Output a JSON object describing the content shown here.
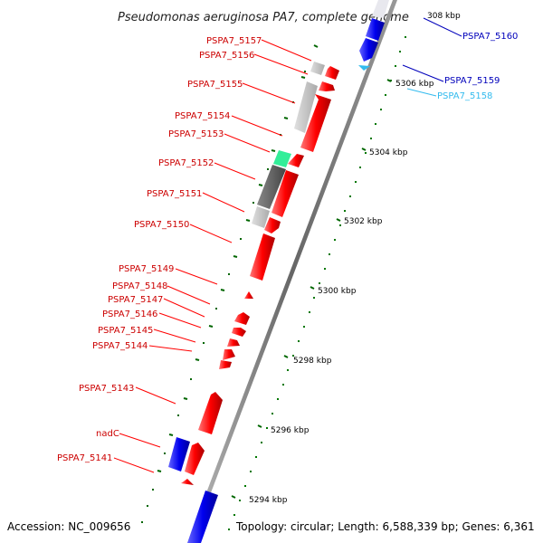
{
  "title": "Pseudomonas aeruginosa PA7, complete genome",
  "footer": {
    "accession": "Accession: NC_009656",
    "summary": "Topology: circular; Length: 6,588,339 bp; Genes: 6,361"
  },
  "scale_labels": [
    "308 kbp",
    "5306 kbp",
    "5304 kbp",
    "5302 kbp",
    "5300 kbp",
    "5298 kbp",
    "5296 kbp",
    "5294 kbp"
  ],
  "genes_left": [
    "PSPA7_5157",
    "PSPA7_5156",
    "PSPA7_5155",
    "PSPA7_5154",
    "PSPA7_5153",
    "PSPA7_5152",
    "PSPA7_5151",
    "PSPA7_5150",
    "PSPA7_5149",
    "PSPA7_5148",
    "PSPA7_5147",
    "PSPA7_5146",
    "PSPA7_5145",
    "PSPA7_5144",
    "PSPA7_5143",
    "nadC",
    "PSPA7_5141"
  ],
  "genes_right": [
    "PSPA7_5160",
    "PSPA7_5159",
    "PSPA7_5158"
  ],
  "colors": {
    "red_gene": "#ff0000",
    "blue_gene": "#0000ee",
    "cyan_gene": "#33bbee",
    "gray_gene": "#bbbbbb",
    "dark_gray_gene": "#666666",
    "green_gene": "#33ee99",
    "tick_green": "#006600",
    "backbone": "#888888"
  }
}
